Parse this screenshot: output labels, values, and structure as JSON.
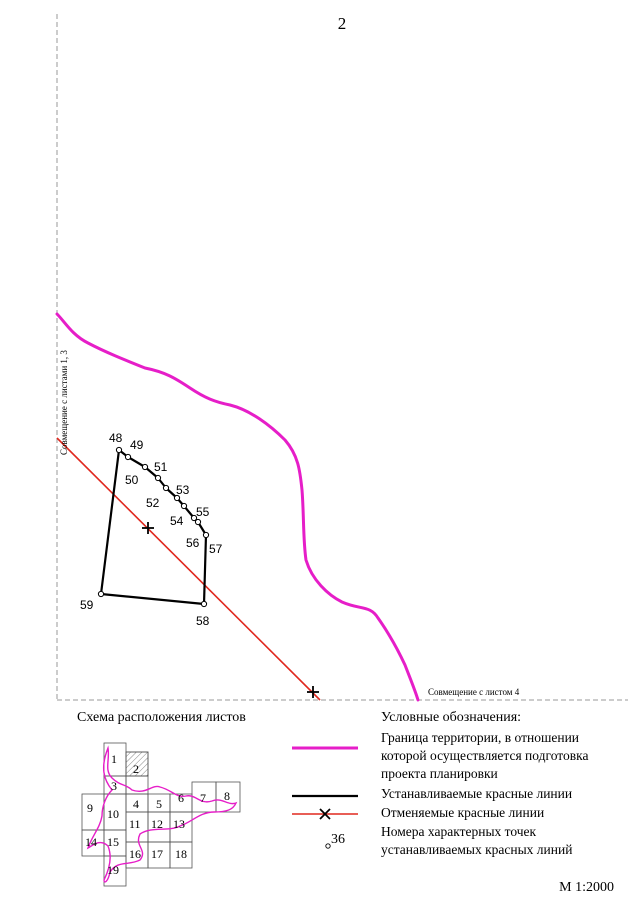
{
  "sheet_number": "2",
  "alignment_notes": {
    "left": "Совмещение с листами 1, 3",
    "bottom": "Совмещение с листом 4"
  },
  "points": [
    {
      "id": "48",
      "label": "48"
    },
    {
      "id": "49",
      "label": "49"
    },
    {
      "id": "50",
      "label": "50"
    },
    {
      "id": "51",
      "label": "51"
    },
    {
      "id": "52",
      "label": "52"
    },
    {
      "id": "53",
      "label": "53"
    },
    {
      "id": "54",
      "label": "54"
    },
    {
      "id": "55",
      "label": "55"
    },
    {
      "id": "56",
      "label": "56"
    },
    {
      "id": "57",
      "label": "57"
    },
    {
      "id": "58",
      "label": "58"
    },
    {
      "id": "59",
      "label": "59"
    }
  ],
  "scheme": {
    "title": "Схема расположения листов",
    "sheets": [
      "1",
      "2",
      "3",
      "4",
      "5",
      "6",
      "7",
      "8",
      "9",
      "10",
      "11",
      "12",
      "13",
      "14",
      "15",
      "16",
      "17",
      "18",
      "19"
    ],
    "current_sheet": "2"
  },
  "legend": {
    "title": "Условные обозначения:",
    "items": [
      {
        "key": "boundary",
        "text": "Граница территории, в отношении которой осуществляется подготовка проекта планировки"
      },
      {
        "key": "new_red_lines",
        "text": "Устанавливаемые красные линии"
      },
      {
        "key": "cancelled_red_lines",
        "text": "Отменяемые красные линии"
      },
      {
        "key": "point_numbers",
        "text": "Номера характерных точек устанавливаемых красных линий",
        "sample": "36"
      }
    ]
  },
  "scale": "М 1:2000",
  "colors": {
    "boundary": "#e61ec8",
    "new_red_lines": "#000000",
    "cancelled_red_lines": "#e0281e",
    "frame": "#999999"
  }
}
